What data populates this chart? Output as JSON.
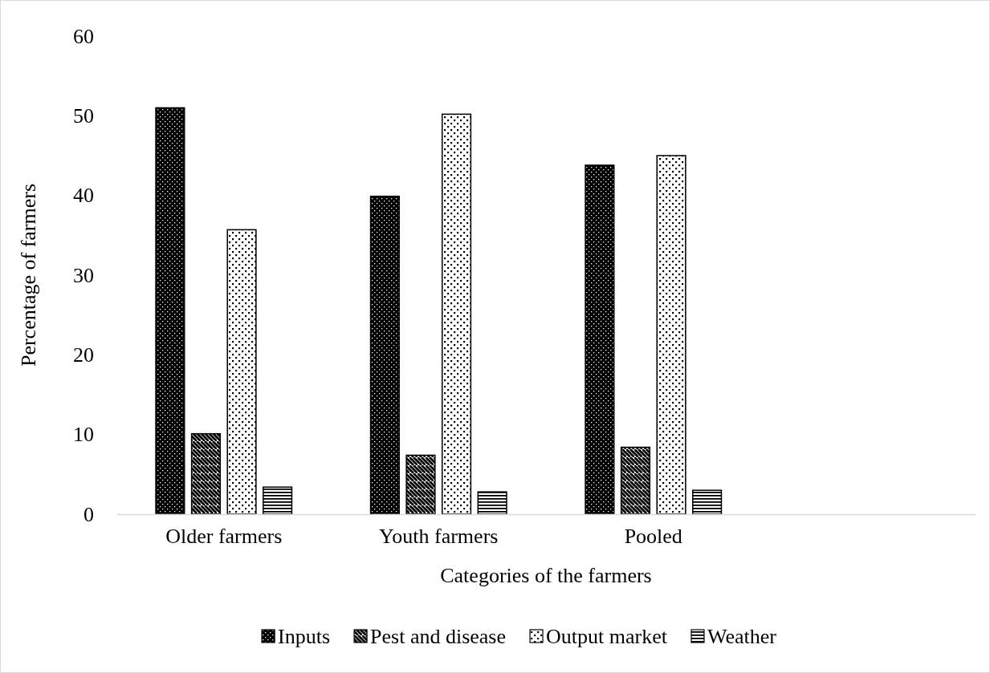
{
  "chart_data": {
    "type": "bar",
    "xlabel": "Categories of the farmers",
    "ylabel": "Percentage of farmers",
    "categories": [
      "Older farmers",
      "Youth farmers",
      "Pooled",
      null
    ],
    "series": [
      {
        "name": "Inputs",
        "color": "#000000",
        "values": [
          51.0,
          39.9,
          43.8,
          null
        ]
      },
      {
        "name": "Pest and disease",
        "color": "#000000",
        "values": [
          10.1,
          7.4,
          8.4,
          null
        ]
      },
      {
        "name": "Output market",
        "color": "#000000",
        "values": [
          35.7,
          50.2,
          45.0,
          null
        ]
      },
      {
        "name": "Weather",
        "color": "#000000",
        "values": [
          3.4,
          2.8,
          3.0,
          null
        ]
      }
    ],
    "ylim": [
      0,
      60
    ],
    "yticks": [
      0,
      10,
      20,
      30,
      40,
      50,
      60
    ],
    "grid": false,
    "legend": "bottom"
  }
}
